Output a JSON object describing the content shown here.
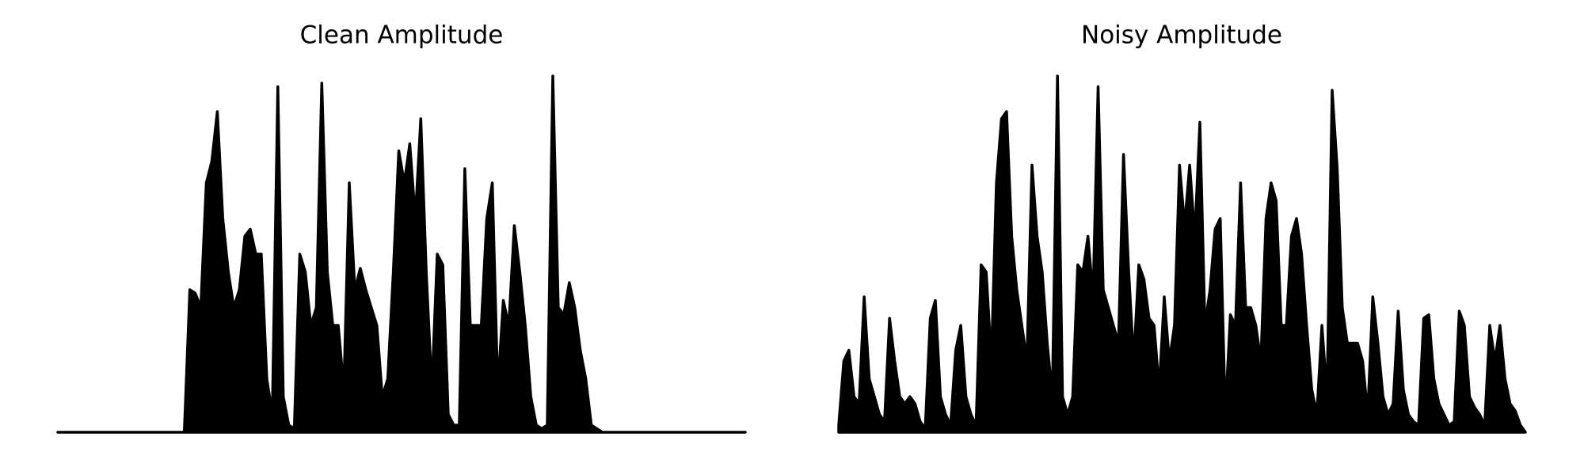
{
  "chart_data": [
    {
      "type": "area",
      "title": "Clean Amplitude",
      "color": "#000000",
      "ylim": [
        0,
        1
      ],
      "values": [
        0,
        0,
        0,
        0,
        0,
        0,
        0,
        0,
        0,
        0,
        0,
        0,
        0,
        0,
        0,
        0,
        0,
        0,
        0,
        0,
        0,
        0,
        0,
        0,
        0.4,
        0.39,
        0.35,
        0.7,
        0.76,
        0.9,
        0.6,
        0.45,
        0.35,
        0.4,
        0.55,
        0.57,
        0.5,
        0.5,
        0.15,
        0.05,
        0.97,
        0.1,
        0.02,
        0.01,
        0.5,
        0.45,
        0.3,
        0.35,
        0.98,
        0.45,
        0.3,
        0.3,
        0.12,
        0.7,
        0.4,
        0.46,
        0.4,
        0.35,
        0.3,
        0.1,
        0.15,
        0.45,
        0.79,
        0.7,
        0.81,
        0.6,
        0.88,
        0.45,
        0.12,
        0.5,
        0.47,
        0.05,
        0.02,
        0.02,
        0.74,
        0.3,
        0.3,
        0.3,
        0.6,
        0.7,
        0.12,
        0.37,
        0.3,
        0.58,
        0.45,
        0.3,
        0.1,
        0.02,
        0.01,
        0.02,
        1.0,
        0.35,
        0.33,
        0.42,
        0.35,
        0.23,
        0.15,
        0.02,
        0.01,
        0,
        0,
        0,
        0,
        0,
        0,
        0,
        0,
        0,
        0,
        0,
        0,
        0,
        0,
        0,
        0,
        0,
        0,
        0,
        0,
        0,
        0,
        0,
        0,
        0,
        0,
        0
      ]
    },
    {
      "type": "area",
      "title": "Noisy Amplitude",
      "color": "#000000",
      "ylim": [
        0,
        1
      ],
      "values": [
        0.02,
        0.2,
        0.23,
        0.1,
        0.08,
        0.38,
        0.15,
        0.1,
        0.05,
        0.03,
        0.32,
        0.2,
        0.1,
        0.08,
        0.1,
        0.08,
        0.03,
        0.01,
        0.32,
        0.37,
        0.1,
        0.05,
        0.02,
        0.23,
        0.3,
        0.1,
        0.05,
        0.02,
        0.47,
        0.45,
        0.2,
        0.7,
        0.88,
        0.9,
        0.55,
        0.4,
        0.3,
        0.2,
        0.75,
        0.55,
        0.45,
        0.25,
        0.1,
        1.0,
        0.1,
        0.05,
        0.1,
        0.47,
        0.45,
        0.55,
        0.38,
        0.97,
        0.4,
        0.35,
        0.3,
        0.25,
        0.78,
        0.45,
        0.2,
        0.47,
        0.43,
        0.32,
        0.3,
        0.12,
        0.38,
        0.2,
        0.3,
        0.75,
        0.58,
        0.75,
        0.55,
        0.87,
        0.3,
        0.4,
        0.57,
        0.6,
        0.05,
        0.33,
        0.3,
        0.7,
        0.35,
        0.35,
        0.3,
        0.2,
        0.6,
        0.7,
        0.65,
        0.3,
        0.3,
        0.55,
        0.6,
        0.5,
        0.3,
        0.12,
        0.05,
        0.3,
        0.1,
        0.96,
        0.74,
        0.35,
        0.25,
        0.25,
        0.25,
        0.2,
        0.05,
        0.38,
        0.25,
        0.1,
        0.05,
        0.08,
        0.34,
        0.12,
        0.05,
        0.03,
        0.02,
        0.32,
        0.33,
        0.15,
        0.08,
        0.05,
        0.02,
        0.03,
        0.34,
        0.3,
        0.1,
        0.07,
        0.05,
        0.02,
        0.3,
        0.2,
        0.3,
        0.15,
        0.08,
        0.06,
        0.02,
        0
      ]
    }
  ]
}
